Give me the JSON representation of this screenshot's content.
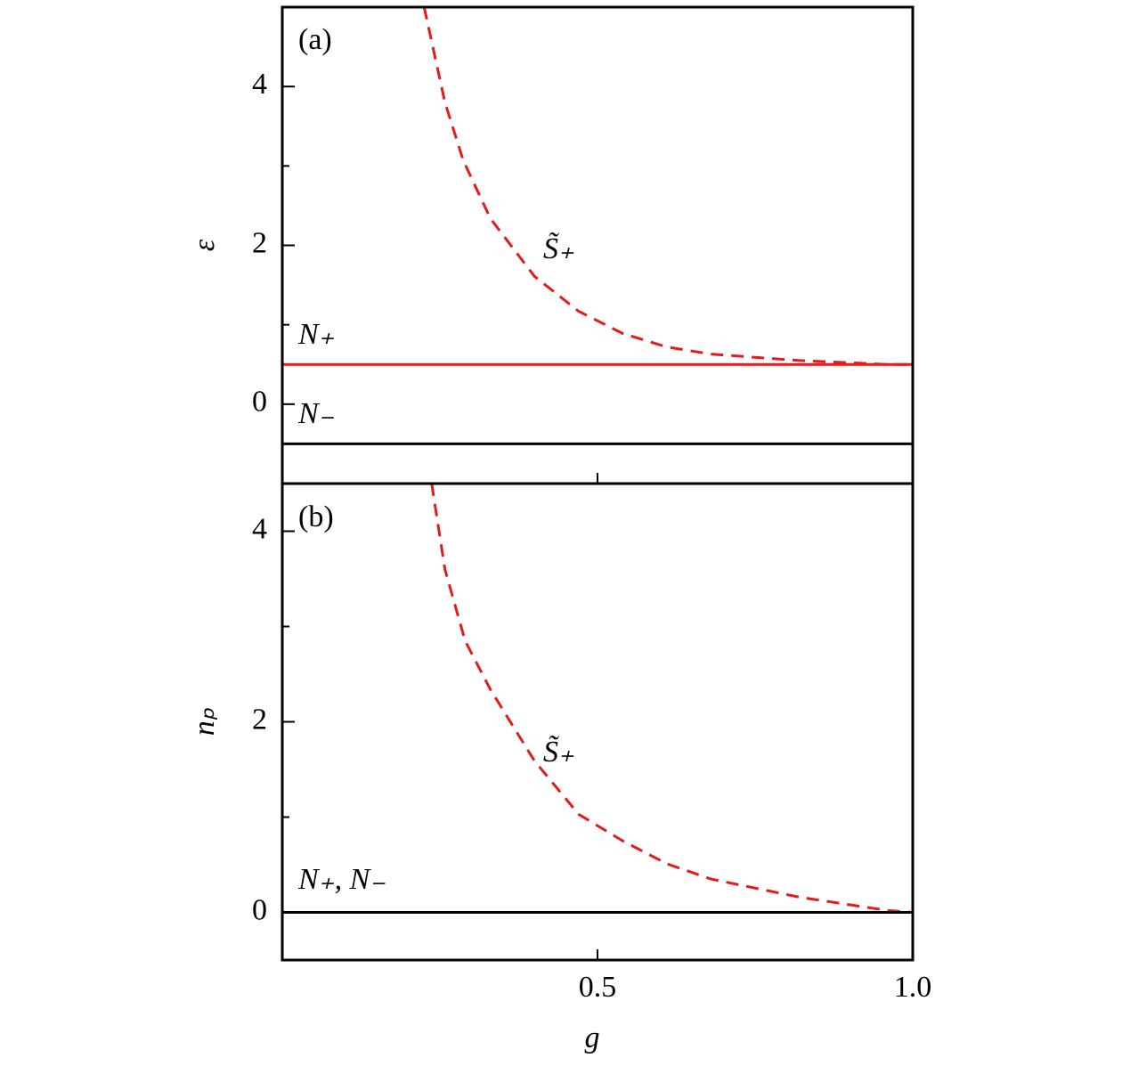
{
  "chart_data": [
    {
      "type": "line",
      "panel_label": "(a)",
      "ylabel": "ε",
      "xlim": [
        0,
        1
      ],
      "xticks": [
        0.5
      ],
      "show_xtick_labels": false,
      "ylim": [
        -1,
        5
      ],
      "yticks": [
        0,
        2,
        4
      ],
      "yminorticks": [
        1,
        3
      ],
      "series": [
        {
          "name": "S̃₊",
          "color": "#e41a1c",
          "style": "dashed",
          "x": [
            0.225,
            0.258,
            0.287,
            0.33,
            0.4,
            0.47,
            0.54,
            0.61,
            0.68,
            0.82,
            0.96,
            1.0
          ],
          "values": [
            5,
            3.8,
            3.07,
            2.34,
            1.61,
            1.17,
            0.89,
            0.72,
            0.63,
            0.55,
            0.5,
            0.5
          ]
        },
        {
          "name": "N₊",
          "color": "#e41a1c",
          "style": "solid",
          "x": [
            0,
            1
          ],
          "values": [
            0.5,
            0.5
          ]
        },
        {
          "name": "N₋",
          "color": "#000000",
          "style": "solid",
          "x": [
            0,
            1
          ],
          "values": [
            -0.5,
            -0.5
          ]
        }
      ]
    },
    {
      "type": "line",
      "panel_label": "(b)",
      "ylabel": "nₚ",
      "xlabel": "g",
      "xlim": [
        0,
        1
      ],
      "xticks": [
        0.5,
        {
          "value": 1,
          "label": "1.0"
        }
      ],
      "show_xtick_labels": true,
      "ylim": [
        -0.5,
        4.5
      ],
      "yticks": [
        0,
        2,
        4
      ],
      "yminorticks": [
        1,
        3
      ],
      "series": [
        {
          "name": "S̃₊",
          "color": "#e41a1c",
          "style": "dashed",
          "x": [
            0.237,
            0.258,
            0.29,
            0.33,
            0.4,
            0.47,
            0.54,
            0.61,
            0.68,
            0.82,
            0.96,
            1.0
          ],
          "values": [
            4.5,
            3.6,
            2.85,
            2.34,
            1.59,
            1.03,
            0.75,
            0.51,
            0.35,
            0.16,
            0.02,
            0
          ]
        },
        {
          "name": "N₊, N₋",
          "color": "#000000",
          "style": "solid",
          "x": [
            0,
            1
          ],
          "values": [
            0,
            0
          ]
        }
      ]
    }
  ]
}
